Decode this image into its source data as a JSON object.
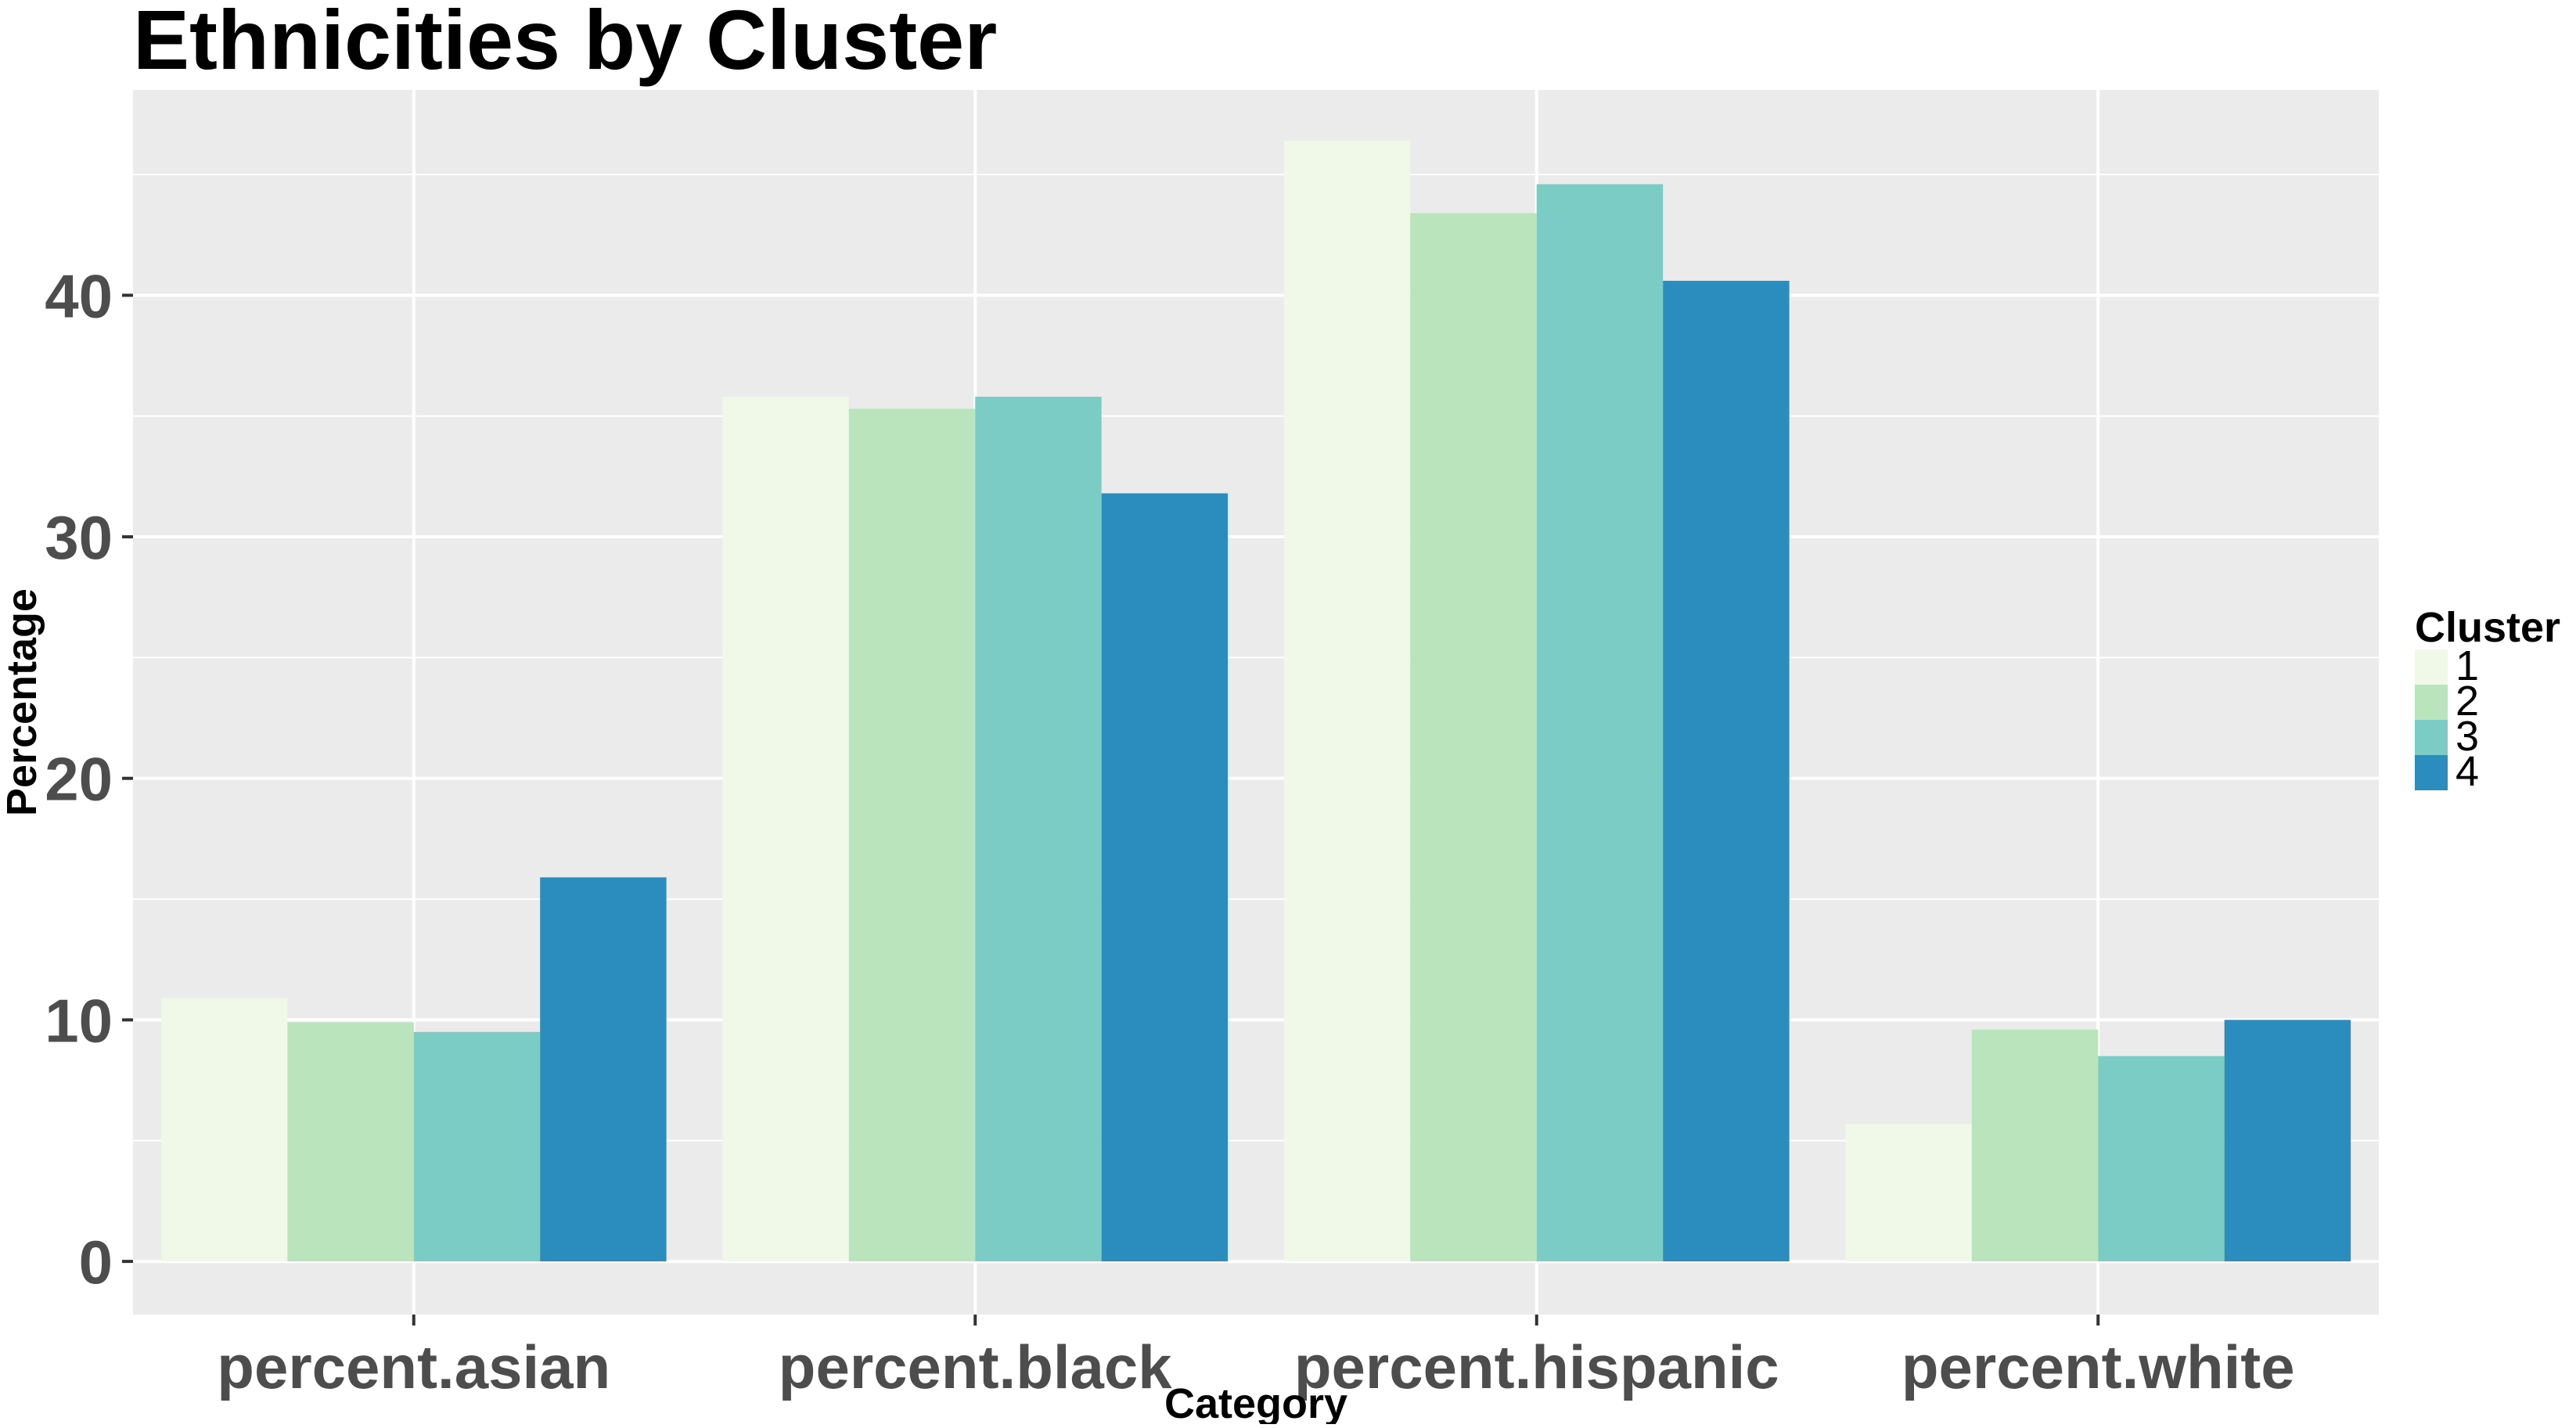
{
  "chart_data": {
    "type": "bar",
    "title": "Ethnicities by Cluster",
    "xlabel": "Category",
    "ylabel": "Percentage",
    "categories": [
      "percent.asian",
      "percent.black",
      "percent.hispanic",
      "percent.white"
    ],
    "series": [
      {
        "name": "1",
        "color": "#f0f9e8",
        "values": [
          10.9,
          35.8,
          46.4,
          5.7
        ]
      },
      {
        "name": "2",
        "color": "#bae4bc",
        "values": [
          9.9,
          35.3,
          43.4,
          9.6
        ]
      },
      {
        "name": "3",
        "color": "#7bccc4",
        "values": [
          9.5,
          35.8,
          44.6,
          8.5
        ]
      },
      {
        "name": "4",
        "color": "#2b8cbe",
        "values": [
          15.9,
          31.8,
          40.6,
          10.0
        ]
      }
    ],
    "ylim": [
      -2.2,
      48.5
    ],
    "yticks": [
      0,
      10,
      20,
      30,
      40
    ],
    "grid": true,
    "panel_background": "#ebebeb",
    "grid_color": "#ffffff",
    "legend": {
      "title": "Cluster",
      "placement": "right"
    }
  }
}
